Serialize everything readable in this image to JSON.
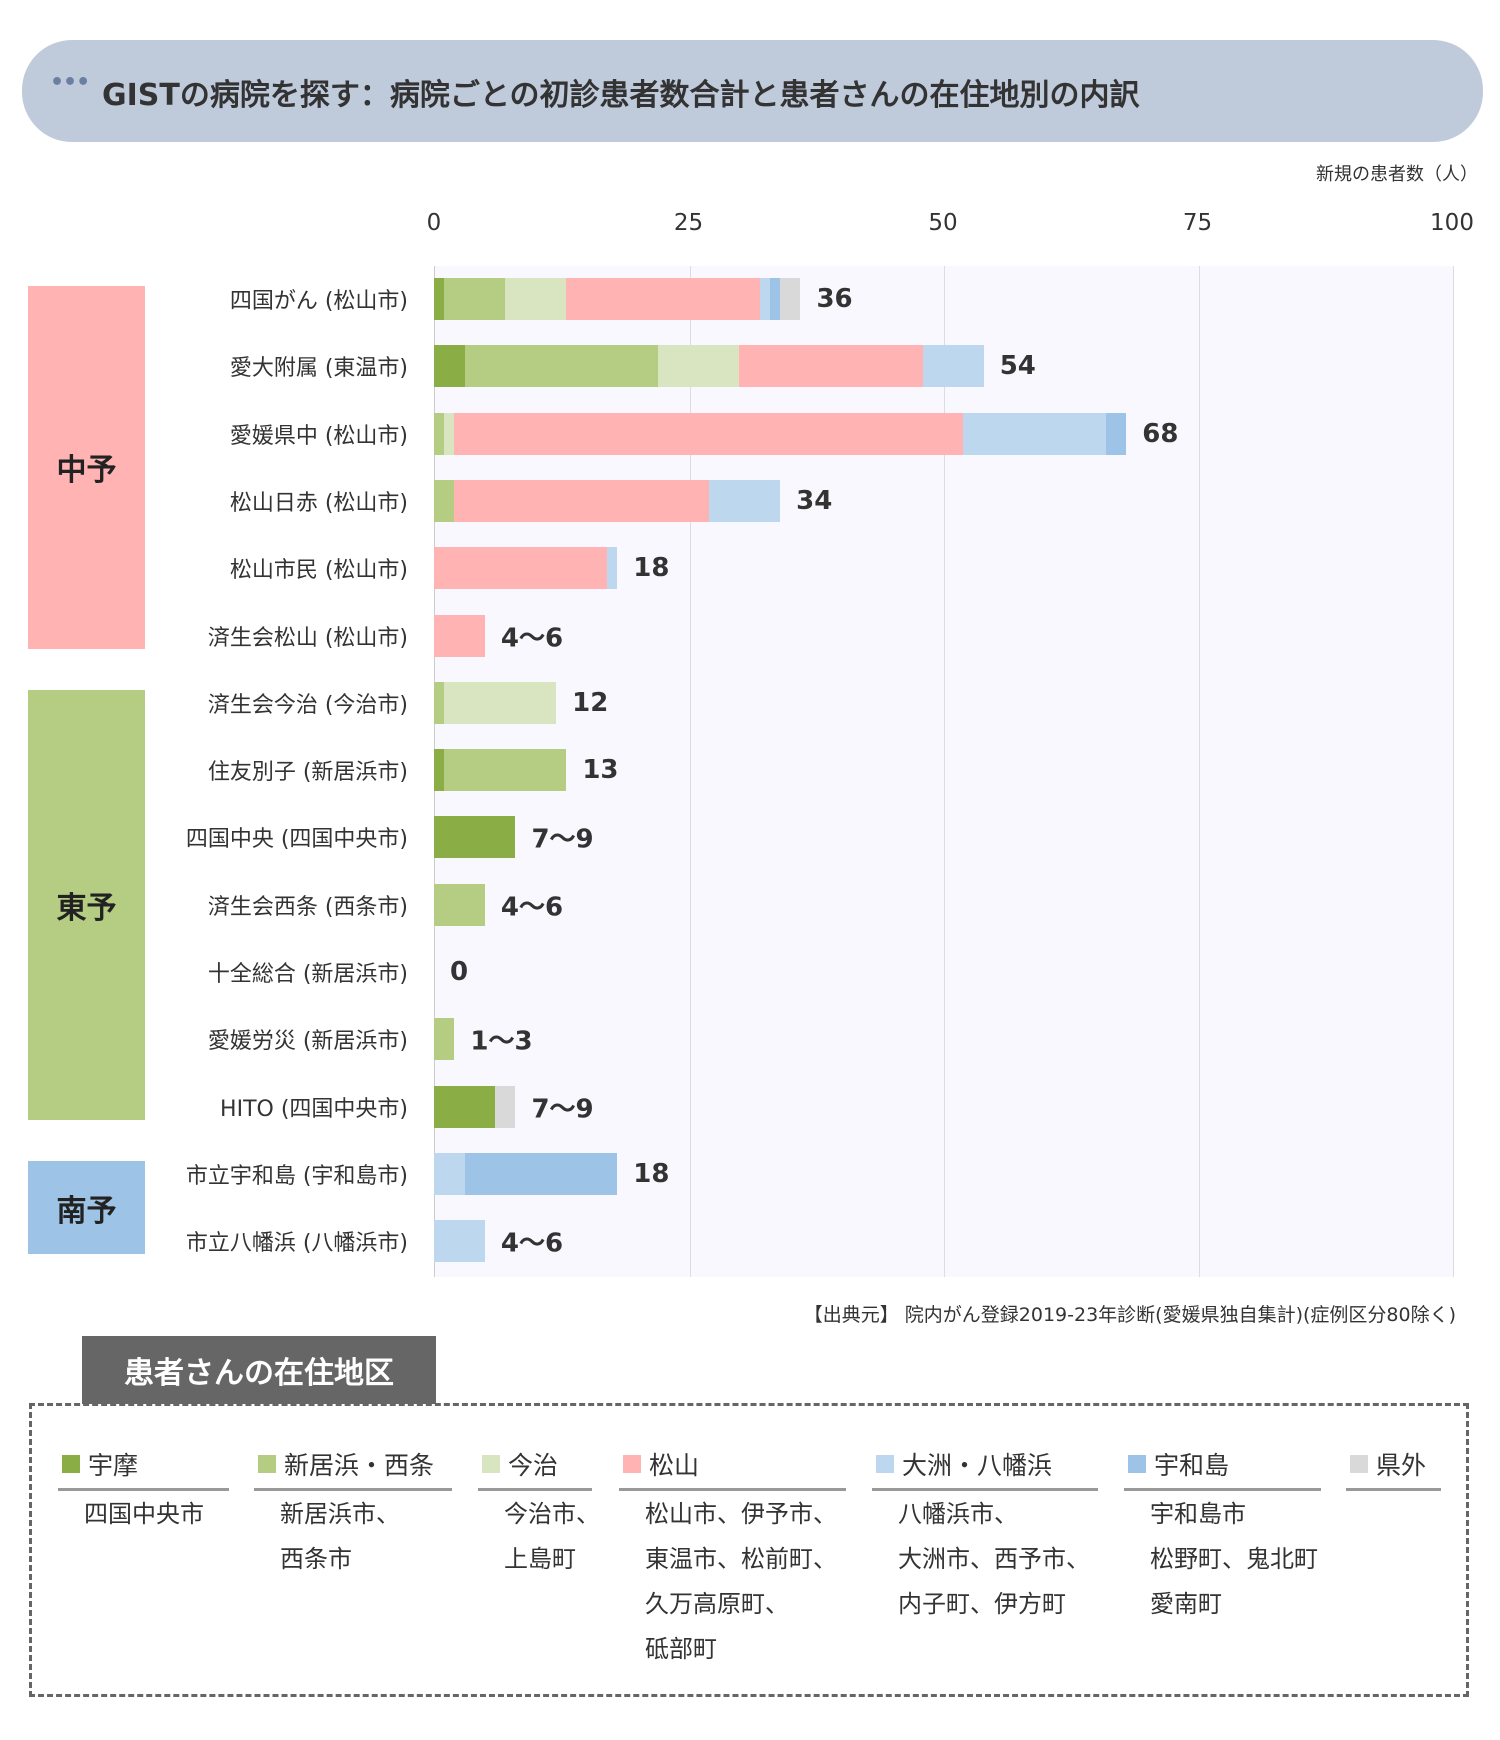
{
  "header": {
    "title": "GISTの病院を探す：病院ごとの初診患者数合計と患者さんの在住地別の内訳",
    "icon": "ellipsis-icon"
  },
  "chart_data": {
    "type": "bar",
    "orientation": "horizontal",
    "stacked": true,
    "title": "GISTの病院を探す：病院ごとの初診患者数合計と患者さんの在住地別の内訳",
    "xlabel": "新規の患者数（人）",
    "xlim": [
      0,
      100
    ],
    "ticks": [
      "0",
      "25",
      "50",
      "75",
      "100"
    ],
    "grid": true,
    "categories_legend": [
      "宇摩",
      "新居浜・西条",
      "今治",
      "松山",
      "大洲・八幡浜",
      "宇和島",
      "県外"
    ],
    "colors": [
      "#8aad45",
      "#b5cc83",
      "#d9e5c0",
      "#ffb3b3",
      "#bdd7ee",
      "#9dc3e6",
      "#d9d9d9"
    ],
    "regions": [
      {
        "name": "中予",
        "color": "#ffb3b3",
        "rows": 6
      },
      {
        "name": "東予",
        "color": "#b5cc83",
        "rows": 7
      },
      {
        "name": "南予",
        "color": "#9dc3e6",
        "rows": 2
      }
    ],
    "hospitals": [
      {
        "name": "四国がん (松山市)",
        "label": "36",
        "values": [
          1,
          6,
          6,
          19,
          1,
          1,
          2
        ]
      },
      {
        "name": "愛大附属 (東温市)",
        "label": "54",
        "values": [
          3,
          19,
          8,
          18,
          6,
          0,
          0
        ]
      },
      {
        "name": "愛媛県中 (松山市)",
        "label": "68",
        "values": [
          0,
          1,
          1,
          50,
          14,
          2,
          0
        ]
      },
      {
        "name": "松山日赤 (松山市)",
        "label": "34",
        "values": [
          0,
          2,
          0,
          25,
          7,
          0,
          0
        ]
      },
      {
        "name": "松山市民 (松山市)",
        "label": "18",
        "values": [
          0,
          0,
          0,
          17,
          1,
          0,
          0
        ]
      },
      {
        "name": "済生会松山 (松山市)",
        "label": "4～6",
        "values": [
          0,
          0,
          0,
          5,
          0,
          0,
          0
        ]
      },
      {
        "name": "済生会今治 (今治市)",
        "label": "12",
        "values": [
          0,
          1,
          11,
          0,
          0,
          0,
          0
        ]
      },
      {
        "name": "住友別子 (新居浜市)",
        "label": "13",
        "values": [
          1,
          12,
          0,
          0,
          0,
          0,
          0
        ]
      },
      {
        "name": "四国中央 (四国中央市)",
        "label": "7～9",
        "values": [
          8,
          0,
          0,
          0,
          0,
          0,
          0
        ]
      },
      {
        "name": "済生会西条 (西条市)",
        "label": "4～6",
        "values": [
          0,
          5,
          0,
          0,
          0,
          0,
          0
        ]
      },
      {
        "name": "十全総合 (新居浜市)",
        "label": "0",
        "values": [
          0,
          0,
          0,
          0,
          0,
          0,
          0
        ]
      },
      {
        "name": "愛媛労災 (新居浜市)",
        "label": "1～3",
        "values": [
          0,
          2,
          0,
          0,
          0,
          0,
          0
        ]
      },
      {
        "name": "HITO (四国中央市)",
        "label": "7～9",
        "values": [
          6,
          0,
          0,
          0,
          0,
          0,
          2
        ]
      },
      {
        "name": "市立宇和島 (宇和島市)",
        "label": "18",
        "values": [
          0,
          0,
          0,
          0,
          3,
          15,
          0
        ]
      },
      {
        "name": "市立八幡浜 (八幡浜市)",
        "label": "4～6",
        "values": [
          0,
          0,
          0,
          0,
          5,
          0,
          0
        ]
      }
    ],
    "source": "【出典元】 院内がん登録2019-23年診断(愛媛県独自集計)(症例区分80除く)"
  },
  "legend": {
    "title": "患者さんの在住地区",
    "columns": [
      {
        "name": "宇摩",
        "color": "#8aad45",
        "lines": [
          "四国中央市"
        ]
      },
      {
        "name": "新居浜・西条",
        "color": "#b5cc83",
        "lines": [
          "新居浜市、",
          "西条市"
        ]
      },
      {
        "name": "今治",
        "color": "#d9e5c0",
        "lines": [
          "今治市、",
          "上島町"
        ]
      },
      {
        "name": "松山",
        "color": "#ffb3b3",
        "lines": [
          "松山市、伊予市、",
          "東温市、松前町、",
          "久万高原町、",
          "砥部町"
        ]
      },
      {
        "name": "大洲・八幡浜",
        "color": "#bdd7ee",
        "lines": [
          "八幡浜市、",
          "大洲市、西予市、",
          "内子町、伊方町"
        ]
      },
      {
        "name": "宇和島",
        "color": "#9dc3e6",
        "lines": [
          "宇和島市",
          "松野町、鬼北町",
          "愛南町"
        ]
      },
      {
        "name": "県外",
        "color": "#d9d9d9",
        "lines": []
      }
    ]
  }
}
